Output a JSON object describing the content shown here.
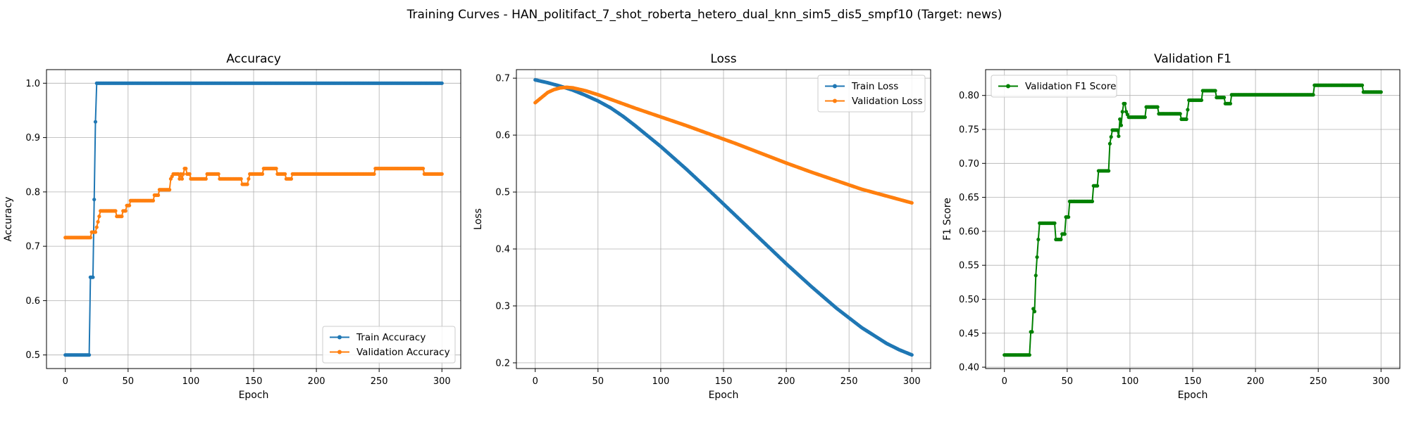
{
  "figure": {
    "title": "Training Curves - HAN_politifact_7_shot_roberta_hetero_dual_knn_sim5_dis5_smpf10 (Target: news)"
  },
  "chart_data": [
    {
      "type": "line",
      "title": "Accuracy",
      "xlabel": "Epoch",
      "ylabel": "Accuracy",
      "xlim": [
        -15,
        315
      ],
      "ylim": [
        0.475,
        1.025
      ],
      "xticks": [
        0,
        50,
        100,
        150,
        200,
        250,
        300
      ],
      "yticks": [
        0.5,
        0.6,
        0.7,
        0.8,
        0.9,
        1.0
      ],
      "ytick_decimals": 1,
      "grid": true,
      "legend": "lower-right",
      "series": [
        {
          "name": "Train Accuracy",
          "color": "#1f77b4",
          "points": [
            [
              0,
              0.5
            ],
            [
              19,
              0.5
            ],
            [
              20,
              0.643
            ],
            [
              22,
              0.643
            ],
            [
              23,
              0.786
            ],
            [
              24,
              0.929
            ],
            [
              25,
              1.0
            ],
            [
              300,
              1.0
            ]
          ]
        },
        {
          "name": "Validation Accuracy",
          "color": "#ff7f0e",
          "points": [
            [
              0,
              0.716
            ],
            [
              20,
              0.716
            ],
            [
              21,
              0.726
            ],
            [
              24,
              0.726
            ],
            [
              25,
              0.735
            ],
            [
              26,
              0.745
            ],
            [
              27,
              0.755
            ],
            [
              28,
              0.765
            ],
            [
              40,
              0.765
            ],
            [
              41,
              0.755
            ],
            [
              45,
              0.755
            ],
            [
              46,
              0.765
            ],
            [
              48,
              0.765
            ],
            [
              49,
              0.775
            ],
            [
              51,
              0.775
            ],
            [
              52,
              0.784
            ],
            [
              70,
              0.784
            ],
            [
              71,
              0.794
            ],
            [
              74,
              0.794
            ],
            [
              75,
              0.804
            ],
            [
              83,
              0.804
            ],
            [
              84,
              0.824
            ],
            [
              86,
              0.833
            ],
            [
              90,
              0.833
            ],
            [
              91,
              0.824
            ],
            [
              92,
              0.833
            ],
            [
              93,
              0.824
            ],
            [
              94,
              0.833
            ],
            [
              95,
              0.843
            ],
            [
              96,
              0.843
            ],
            [
              97,
              0.833
            ],
            [
              99,
              0.833
            ],
            [
              100,
              0.824
            ],
            [
              112,
              0.824
            ],
            [
              113,
              0.833
            ],
            [
              122,
              0.833
            ],
            [
              123,
              0.824
            ],
            [
              140,
              0.824
            ],
            [
              141,
              0.814
            ],
            [
              145,
              0.814
            ],
            [
              146,
              0.824
            ],
            [
              147,
              0.833
            ],
            [
              157,
              0.833
            ],
            [
              158,
              0.843
            ],
            [
              168,
              0.843
            ],
            [
              169,
              0.833
            ],
            [
              175,
              0.833
            ],
            [
              176,
              0.824
            ],
            [
              180,
              0.824
            ],
            [
              181,
              0.833
            ],
            [
              246,
              0.833
            ],
            [
              247,
              0.843
            ],
            [
              285,
              0.843
            ],
            [
              286,
              0.833
            ],
            [
              300,
              0.833
            ]
          ]
        }
      ]
    },
    {
      "type": "line",
      "title": "Loss",
      "xlabel": "Epoch",
      "ylabel": "Loss",
      "xlim": [
        -15,
        315
      ],
      "ylim": [
        0.19,
        0.715
      ],
      "xticks": [
        0,
        50,
        100,
        150,
        200,
        250,
        300
      ],
      "yticks": [
        0.2,
        0.3,
        0.4,
        0.5,
        0.6,
        0.7
      ],
      "ytick_decimals": 1,
      "grid": true,
      "legend": "upper-right",
      "series": [
        {
          "name": "Train Loss",
          "color": "#1f77b4",
          "points": [
            [
              0,
              0.697
            ],
            [
              10,
              0.692
            ],
            [
              20,
              0.686
            ],
            [
              30,
              0.679
            ],
            [
              40,
              0.67
            ],
            [
              50,
              0.66
            ],
            [
              60,
              0.648
            ],
            [
              70,
              0.633
            ],
            [
              80,
              0.616
            ],
            [
              90,
              0.598
            ],
            [
              100,
              0.58
            ],
            [
              120,
              0.541
            ],
            [
              140,
              0.5
            ],
            [
              160,
              0.458
            ],
            [
              180,
              0.416
            ],
            [
              200,
              0.374
            ],
            [
              220,
              0.334
            ],
            [
              240,
              0.296
            ],
            [
              260,
              0.262
            ],
            [
              280,
              0.234
            ],
            [
              290,
              0.223
            ],
            [
              300,
              0.214
            ]
          ]
        },
        {
          "name": "Validation Loss",
          "color": "#ff7f0e",
          "points": [
            [
              0,
              0.657
            ],
            [
              5,
              0.666
            ],
            [
              10,
              0.675
            ],
            [
              15,
              0.68
            ],
            [
              20,
              0.683
            ],
            [
              25,
              0.684
            ],
            [
              30,
              0.683
            ],
            [
              40,
              0.678
            ],
            [
              50,
              0.671
            ],
            [
              60,
              0.663
            ],
            [
              80,
              0.647
            ],
            [
              100,
              0.632
            ],
            [
              120,
              0.617
            ],
            [
              140,
              0.601
            ],
            [
              160,
              0.585
            ],
            [
              180,
              0.568
            ],
            [
              200,
              0.551
            ],
            [
              220,
              0.535
            ],
            [
              240,
              0.52
            ],
            [
              260,
              0.505
            ],
            [
              280,
              0.493
            ],
            [
              300,
              0.481
            ]
          ]
        }
      ]
    },
    {
      "type": "line",
      "title": "Validation F1",
      "xlabel": "Epoch",
      "ylabel": "F1 Score",
      "xlim": [
        -15,
        315
      ],
      "ylim": [
        0.398,
        0.838
      ],
      "xticks": [
        0,
        50,
        100,
        150,
        200,
        250,
        300
      ],
      "yticks": [
        0.4,
        0.45,
        0.5,
        0.55,
        0.6,
        0.65,
        0.7,
        0.75,
        0.8
      ],
      "ytick_decimals": 2,
      "grid": true,
      "legend": "upper-left",
      "series": [
        {
          "name": "Validation F1 Score",
          "color": "#008000",
          "points": [
            [
              0,
              0.418
            ],
            [
              20,
              0.418
            ],
            [
              21,
              0.452
            ],
            [
              22,
              0.452
            ],
            [
              23,
              0.486
            ],
            [
              24,
              0.482
            ],
            [
              25,
              0.535
            ],
            [
              26,
              0.562
            ],
            [
              27,
              0.588
            ],
            [
              28,
              0.612
            ],
            [
              40,
              0.612
            ],
            [
              41,
              0.588
            ],
            [
              45,
              0.588
            ],
            [
              46,
              0.596
            ],
            [
              48,
              0.596
            ],
            [
              49,
              0.621
            ],
            [
              51,
              0.621
            ],
            [
              52,
              0.644
            ],
            [
              70,
              0.644
            ],
            [
              71,
              0.667
            ],
            [
              74,
              0.667
            ],
            [
              75,
              0.689
            ],
            [
              83,
              0.689
            ],
            [
              84,
              0.729
            ],
            [
              86,
              0.749
            ],
            [
              90,
              0.749
            ],
            [
              91,
              0.74
            ],
            [
              92,
              0.765
            ],
            [
              93,
              0.756
            ],
            [
              94,
              0.776
            ],
            [
              95,
              0.788
            ],
            [
              96,
              0.788
            ],
            [
              97,
              0.776
            ],
            [
              99,
              0.768
            ],
            [
              112,
              0.768
            ],
            [
              113,
              0.783
            ],
            [
              122,
              0.783
            ],
            [
              123,
              0.773
            ],
            [
              140,
              0.773
            ],
            [
              141,
              0.765
            ],
            [
              145,
              0.765
            ],
            [
              146,
              0.779
            ],
            [
              147,
              0.793
            ],
            [
              157,
              0.793
            ],
            [
              158,
              0.807
            ],
            [
              168,
              0.807
            ],
            [
              169,
              0.797
            ],
            [
              175,
              0.797
            ],
            [
              176,
              0.788
            ],
            [
              180,
              0.788
            ],
            [
              181,
              0.801
            ],
            [
              246,
              0.801
            ],
            [
              247,
              0.815
            ],
            [
              285,
              0.815
            ],
            [
              286,
              0.805
            ],
            [
              300,
              0.805
            ]
          ]
        }
      ]
    }
  ]
}
